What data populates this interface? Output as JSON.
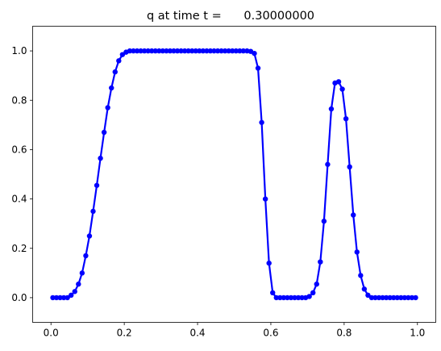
{
  "chart_data": {
    "type": "line",
    "title": "q at time t =      0.30000000",
    "xlabel": "",
    "ylabel": "",
    "xlim": [
      -0.05,
      1.05
    ],
    "ylim": [
      -0.1,
      1.1
    ],
    "xticks": [
      "0.0",
      "0.2",
      "0.4",
      "0.6",
      "0.8",
      "1.0"
    ],
    "yticks": [
      "0.0",
      "0.2",
      "0.4",
      "0.6",
      "0.8",
      "1.0"
    ],
    "grid": false,
    "legend": "none",
    "series": [
      {
        "color": "#0000ff",
        "marker": "circle",
        "x": [
          0.005,
          0.015,
          0.025,
          0.035,
          0.045,
          0.055,
          0.065,
          0.075,
          0.085,
          0.095,
          0.105,
          0.115,
          0.125,
          0.135,
          0.145,
          0.155,
          0.165,
          0.175,
          0.185,
          0.195,
          0.205,
          0.215,
          0.225,
          0.235,
          0.245,
          0.255,
          0.265,
          0.275,
          0.285,
          0.295,
          0.305,
          0.315,
          0.325,
          0.335,
          0.345,
          0.355,
          0.365,
          0.375,
          0.385,
          0.395,
          0.405,
          0.415,
          0.425,
          0.435,
          0.445,
          0.455,
          0.465,
          0.475,
          0.485,
          0.495,
          0.505,
          0.515,
          0.525,
          0.535,
          0.545,
          0.555,
          0.565,
          0.575,
          0.585,
          0.595,
          0.605,
          0.615,
          0.625,
          0.635,
          0.645,
          0.655,
          0.665,
          0.675,
          0.685,
          0.695,
          0.705,
          0.715,
          0.725,
          0.735,
          0.745,
          0.755,
          0.765,
          0.775,
          0.785,
          0.795,
          0.805,
          0.815,
          0.825,
          0.835,
          0.845,
          0.855,
          0.865,
          0.875,
          0.885,
          0.895,
          0.905,
          0.915,
          0.925,
          0.935,
          0.945,
          0.955,
          0.965,
          0.975,
          0.985,
          0.995
        ],
        "y": [
          0.0,
          0.0,
          0.0,
          0.0,
          0.0,
          0.01,
          0.025,
          0.055,
          0.1,
          0.17,
          0.25,
          0.35,
          0.455,
          0.565,
          0.67,
          0.77,
          0.85,
          0.915,
          0.96,
          0.985,
          0.995,
          1.0,
          1.0,
          1.0,
          1.0,
          1.0,
          1.0,
          1.0,
          1.0,
          1.0,
          1.0,
          1.0,
          1.0,
          1.0,
          1.0,
          1.0,
          1.0,
          1.0,
          1.0,
          1.0,
          1.0,
          1.0,
          1.0,
          1.0,
          1.0,
          1.0,
          1.0,
          1.0,
          1.0,
          1.0,
          1.0,
          1.0,
          1.0,
          1.0,
          0.998,
          0.99,
          0.93,
          0.71,
          0.4,
          0.14,
          0.02,
          0.0,
          0.0,
          0.0,
          0.0,
          0.0,
          0.0,
          0.0,
          0.0,
          0.0,
          0.005,
          0.02,
          0.055,
          0.145,
          0.31,
          0.54,
          0.765,
          0.87,
          0.875,
          0.845,
          0.725,
          0.53,
          0.335,
          0.185,
          0.09,
          0.035,
          0.01,
          0.0,
          0.0,
          0.0,
          0.0,
          0.0,
          0.0,
          0.0,
          0.0,
          0.0,
          0.0,
          0.0,
          0.0,
          0.0
        ]
      }
    ]
  }
}
